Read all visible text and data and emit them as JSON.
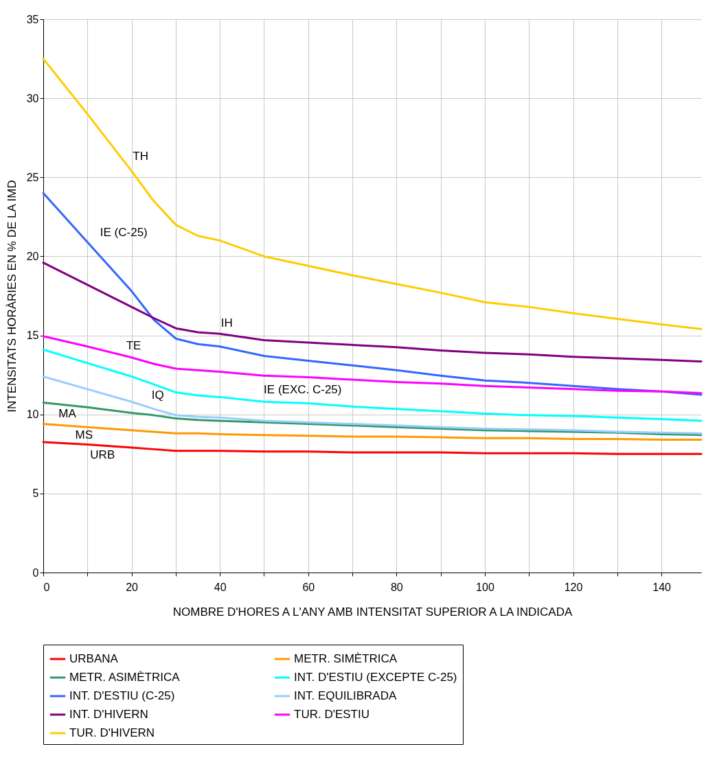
{
  "chart_data": {
    "type": "line",
    "xlabel": "NOMBRE D'HORES A L'ANY AMB INTENSITAT SUPERIOR A LA INDICADA",
    "ylabel": "INTENSITATS HORÀRIES EN % DE LA IMD",
    "x": [
      0,
      10,
      20,
      25,
      30,
      35,
      40,
      50,
      60,
      70,
      80,
      90,
      100,
      110,
      120,
      130,
      140,
      149
    ],
    "xlim": [
      0,
      149
    ],
    "xticks": [
      0,
      {
        "value": 10,
        "label": null
      },
      20,
      {
        "value": 30,
        "label": null
      },
      40,
      {
        "value": 50,
        "label": null
      },
      60,
      {
        "value": 70,
        "label": null
      },
      80,
      {
        "value": 90,
        "label": null
      },
      100,
      {
        "value": 110,
        "label": null
      },
      120,
      {
        "value": 130,
        "label": null
      },
      140
    ],
    "ylim": [
      0,
      35
    ],
    "yticks": [
      0,
      5,
      10,
      15,
      20,
      25,
      30,
      35
    ],
    "grid": true,
    "legend": "bottom",
    "marker": "none",
    "line_style": "solid",
    "series": [
      {
        "name": "URBANA",
        "color": "#ff0000",
        "values": [
          8.25,
          8.1,
          7.9,
          7.8,
          7.7,
          7.7,
          7.7,
          7.65,
          7.65,
          7.6,
          7.6,
          7.6,
          7.55,
          7.55,
          7.55,
          7.5,
          7.5,
          7.5
        ]
      },
      {
        "name": "METR. SIMÈTRICA",
        "color": "#ff9900",
        "values": [
          9.4,
          9.2,
          9.0,
          8.9,
          8.8,
          8.8,
          8.75,
          8.7,
          8.65,
          8.6,
          8.6,
          8.55,
          8.5,
          8.5,
          8.45,
          8.45,
          8.4,
          8.4
        ]
      },
      {
        "name": "METR. ASIMÈTRICA",
        "color": "#339966",
        "values": [
          10.75,
          10.45,
          10.1,
          9.95,
          9.75,
          9.65,
          9.6,
          9.5,
          9.4,
          9.3,
          9.2,
          9.1,
          9.0,
          8.95,
          8.9,
          8.85,
          8.75,
          8.7
        ]
      },
      {
        "name": "INT. D'ESTIU (EXCEPTE C-25)",
        "color": "#00ffff",
        "values": [
          14.1,
          13.25,
          12.4,
          11.9,
          11.4,
          11.2,
          11.1,
          10.8,
          10.7,
          10.5,
          10.35,
          10.2,
          10.05,
          9.95,
          9.9,
          9.8,
          9.7,
          9.6
        ]
      },
      {
        "name": "INT. D'ESTIU (C-25)",
        "color": "#3366ff",
        "values": [
          24.0,
          20.9,
          17.8,
          16.0,
          14.8,
          14.45,
          14.3,
          13.7,
          13.4,
          13.1,
          12.8,
          12.45,
          12.15,
          12.0,
          11.8,
          11.6,
          11.45,
          11.25
        ]
      },
      {
        "name": "INT. EQUILIBRADA",
        "color": "#99ccff",
        "values": [
          12.4,
          11.6,
          10.8,
          10.35,
          9.95,
          9.85,
          9.8,
          9.6,
          9.5,
          9.4,
          9.3,
          9.2,
          9.1,
          9.05,
          9.0,
          8.9,
          8.85,
          8.8
        ]
      },
      {
        "name": "INT. D'HIVERN",
        "color": "#800080",
        "values": [
          19.6,
          18.2,
          16.8,
          16.1,
          15.45,
          15.2,
          15.1,
          14.7,
          14.55,
          14.4,
          14.25,
          14.05,
          13.9,
          13.8,
          13.65,
          13.55,
          13.45,
          13.35
        ]
      },
      {
        "name": "TUR. D'ESTIU",
        "color": "#ff00ff",
        "values": [
          14.95,
          14.3,
          13.6,
          13.2,
          12.9,
          12.8,
          12.7,
          12.45,
          12.35,
          12.2,
          12.05,
          11.95,
          11.8,
          11.7,
          11.6,
          11.5,
          11.45,
          11.35
        ]
      },
      {
        "name": "TUR. D'HIVERN",
        "color": "#ffcc00",
        "values": [
          32.5,
          29.0,
          25.4,
          23.5,
          22.0,
          21.3,
          21.0,
          20.0,
          19.4,
          18.8,
          18.25,
          17.7,
          17.1,
          16.8,
          16.4,
          16.05,
          15.7,
          15.4
        ]
      }
    ],
    "annotations": [
      "URB",
      "MS",
      "MA",
      "IE (EXC. C-25)",
      "IE (C-25)",
      "IQ",
      "IH",
      "TE",
      "TH"
    ]
  }
}
